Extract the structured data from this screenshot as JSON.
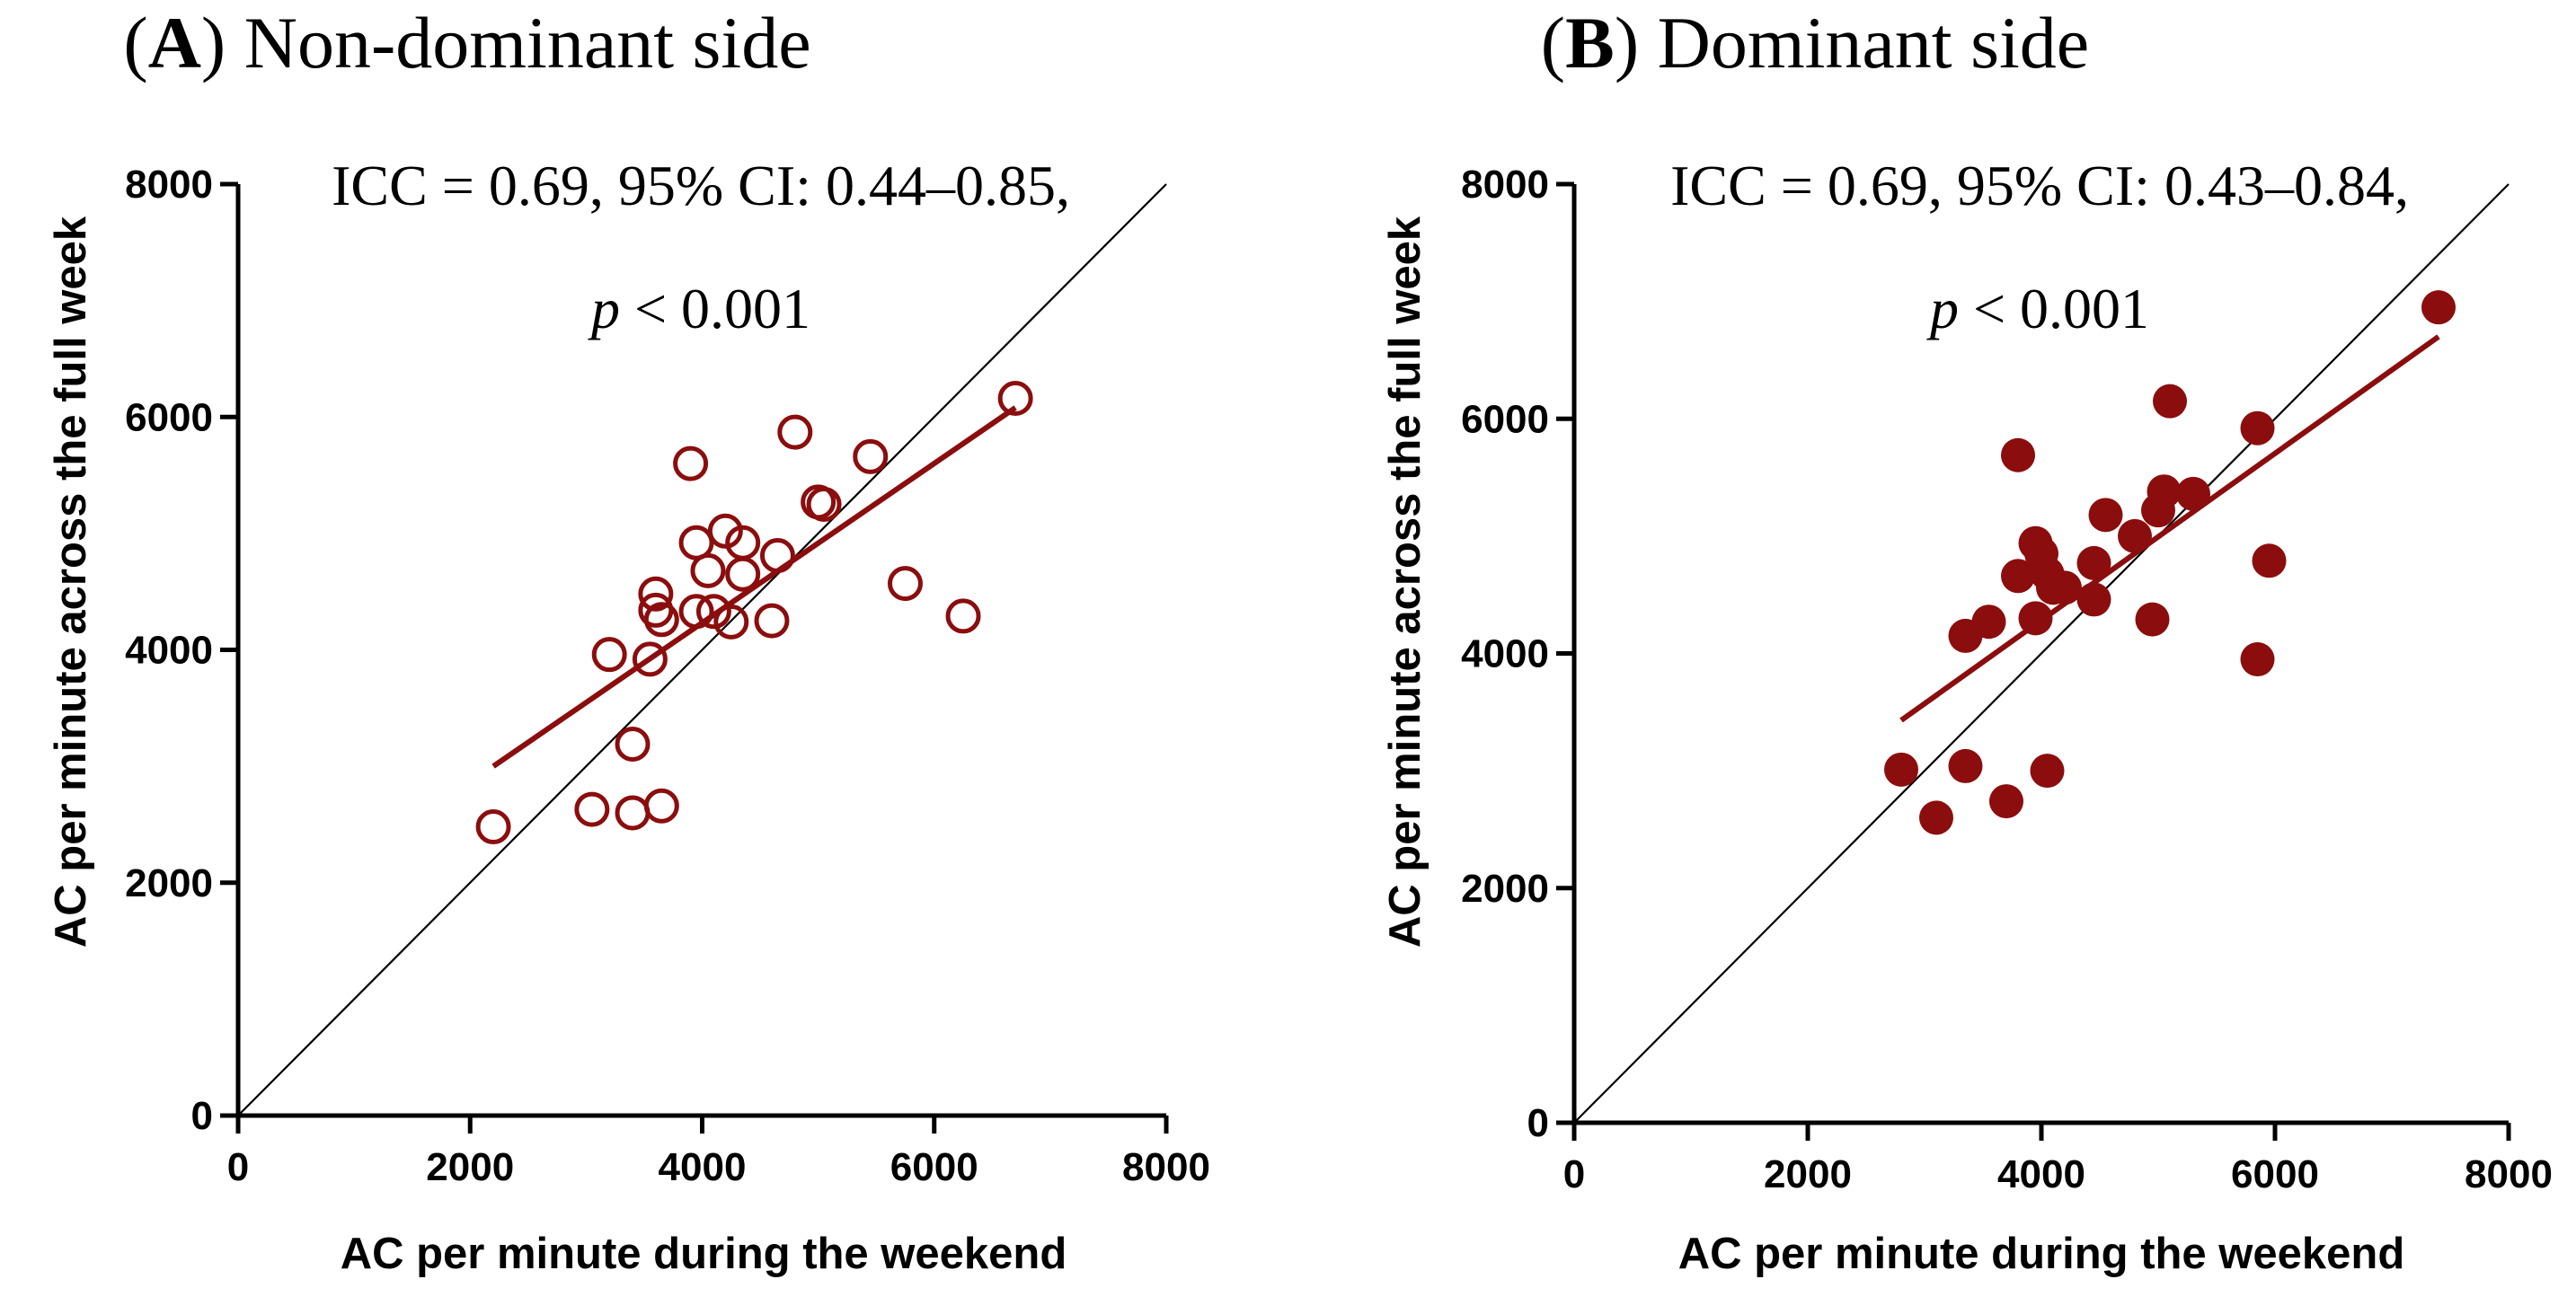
{
  "chart_data": [
    {
      "type": "scatter",
      "panel_letter": "A",
      "panel_name": "Non-dominant side",
      "stats": {
        "line1": "ICC = 0.69, 95% CI: 0.44–0.85,",
        "p_symbol": "p",
        "p_rest": " < 0.001"
      },
      "xlabel": "AC per minute during the weekend",
      "ylabel": "AC per minute across the full week",
      "xlim": [
        0,
        8000
      ],
      "ylim": [
        0,
        8000
      ],
      "xticks": [
        0,
        2000,
        4000,
        6000,
        8000
      ],
      "yticks": [
        0,
        2000,
        4000,
        6000,
        8000
      ],
      "marker": "open-circle",
      "color": "#8b0d0d",
      "identity_line": true,
      "fit_line": {
        "x": [
          2200,
          6700
        ],
        "y": [
          3000,
          6080
        ]
      },
      "grid": false,
      "points": [
        {
          "x": 2200,
          "y": 2480
        },
        {
          "x": 3050,
          "y": 2630
        },
        {
          "x": 3400,
          "y": 2600
        },
        {
          "x": 3650,
          "y": 2660
        },
        {
          "x": 3400,
          "y": 3190
        },
        {
          "x": 3200,
          "y": 3960
        },
        {
          "x": 3550,
          "y": 3920
        },
        {
          "x": 3600,
          "y": 4480
        },
        {
          "x": 3600,
          "y": 4340
        },
        {
          "x": 3650,
          "y": 4260
        },
        {
          "x": 3950,
          "y": 4330
        },
        {
          "x": 4100,
          "y": 4330
        },
        {
          "x": 4250,
          "y": 4240
        },
        {
          "x": 4050,
          "y": 4680
        },
        {
          "x": 3950,
          "y": 4920
        },
        {
          "x": 4200,
          "y": 5020
        },
        {
          "x": 4350,
          "y": 4920
        },
        {
          "x": 4350,
          "y": 4650
        },
        {
          "x": 4650,
          "y": 4810
        },
        {
          "x": 4600,
          "y": 4250
        },
        {
          "x": 3900,
          "y": 5600
        },
        {
          "x": 4800,
          "y": 5870
        },
        {
          "x": 5000,
          "y": 5270
        },
        {
          "x": 5050,
          "y": 5250
        },
        {
          "x": 5450,
          "y": 5660
        },
        {
          "x": 5750,
          "y": 4570
        },
        {
          "x": 6250,
          "y": 4290
        },
        {
          "x": 6700,
          "y": 6160
        }
      ]
    },
    {
      "type": "scatter",
      "panel_letter": "B",
      "panel_name": "Dominant side",
      "stats": {
        "line1": "ICC = 0.69, 95% CI: 0.43–0.84,",
        "p_symbol": "p",
        "p_rest": " < 0.001"
      },
      "xlabel": "AC per minute during the weekend",
      "ylabel": "AC per minute across the full week",
      "xlim": [
        0,
        8000
      ],
      "ylim": [
        0,
        8000
      ],
      "xticks": [
        0,
        2000,
        4000,
        6000,
        8000
      ],
      "yticks": [
        0,
        2000,
        4000,
        6000,
        8000
      ],
      "marker": "filled-circle",
      "color": "#8b0d0d",
      "identity_line": true,
      "fit_line": {
        "x": [
          2800,
          7400
        ],
        "y": [
          3430,
          6700
        ]
      },
      "grid": false,
      "points": [
        {
          "x": 2800,
          "y": 3010
        },
        {
          "x": 3100,
          "y": 2600
        },
        {
          "x": 3350,
          "y": 3040
        },
        {
          "x": 3700,
          "y": 2740
        },
        {
          "x": 4050,
          "y": 3000
        },
        {
          "x": 3350,
          "y": 4150
        },
        {
          "x": 3550,
          "y": 4270
        },
        {
          "x": 3800,
          "y": 5690
        },
        {
          "x": 3800,
          "y": 4660
        },
        {
          "x": 3950,
          "y": 4940
        },
        {
          "x": 3950,
          "y": 4300
        },
        {
          "x": 4000,
          "y": 4850
        },
        {
          "x": 4050,
          "y": 4680
        },
        {
          "x": 4100,
          "y": 4560
        },
        {
          "x": 4200,
          "y": 4560
        },
        {
          "x": 4450,
          "y": 4770
        },
        {
          "x": 4450,
          "y": 4460
        },
        {
          "x": 4550,
          "y": 5180
        },
        {
          "x": 4800,
          "y": 5000
        },
        {
          "x": 4950,
          "y": 4290
        },
        {
          "x": 5000,
          "y": 5220
        },
        {
          "x": 5050,
          "y": 5380
        },
        {
          "x": 5100,
          "y": 6150
        },
        {
          "x": 5300,
          "y": 5360
        },
        {
          "x": 5850,
          "y": 5920
        },
        {
          "x": 5850,
          "y": 3950
        },
        {
          "x": 5950,
          "y": 4790
        },
        {
          "x": 7400,
          "y": 6950
        }
      ]
    }
  ]
}
